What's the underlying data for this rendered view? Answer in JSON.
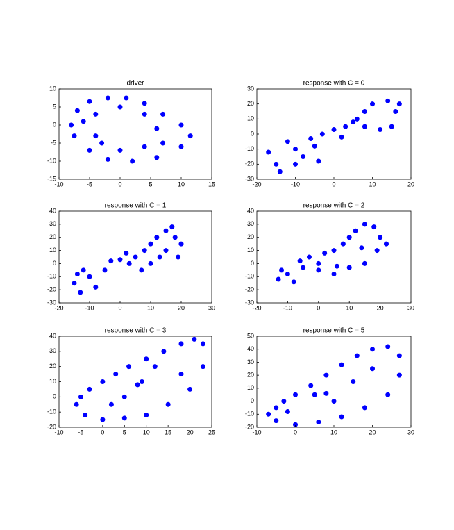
{
  "chart_data": [
    {
      "type": "scatter",
      "title": "driver",
      "color": "#0000ff",
      "xlim": [
        -10,
        15
      ],
      "ylim": [
        -15,
        10
      ],
      "xticks": [
        -10,
        -5,
        0,
        5,
        10,
        15
      ],
      "yticks": [
        -15,
        -10,
        -5,
        0,
        5,
        10
      ],
      "x": [
        -8,
        -7,
        -5,
        -2,
        1,
        4,
        7,
        10,
        11.5,
        10,
        6,
        2,
        -2,
        -5,
        -7.5,
        -4,
        -4,
        0,
        4,
        6,
        4,
        0,
        -3,
        7,
        -6
      ],
      "values": [
        0,
        4,
        6.5,
        7.5,
        7.5,
        6,
        3,
        0,
        -3,
        -6,
        -9,
        -10,
        -9.5,
        -7,
        -3,
        -3,
        3,
        5,
        3,
        -1,
        -6,
        -7,
        -5,
        -5,
        1
      ]
    },
    {
      "type": "scatter",
      "title": "response with C = 0",
      "color": "#0000ff",
      "xlim": [
        -20,
        20
      ],
      "ylim": [
        -30,
        30
      ],
      "xticks": [
        -20,
        -10,
        0,
        10,
        20
      ],
      "yticks": [
        -30,
        -20,
        -10,
        0,
        10,
        20,
        30
      ],
      "x": [
        -15,
        -17,
        -14,
        -10,
        -8,
        -12,
        -5,
        -3,
        0,
        3,
        5,
        8,
        10,
        14,
        16,
        15,
        12,
        8,
        -6,
        -10,
        -4,
        2,
        6,
        17
      ],
      "values": [
        -20,
        -12,
        -25,
        -10,
        -15,
        -5,
        -8,
        0,
        3,
        5,
        8,
        15,
        20,
        22,
        15,
        5,
        3,
        5,
        -3,
        -20,
        -18,
        -2,
        10,
        20
      ]
    },
    {
      "type": "scatter",
      "title": "response with C = 1",
      "color": "#0000ff",
      "xlim": [
        -20,
        30
      ],
      "ylim": [
        -30,
        40
      ],
      "xticks": [
        -20,
        -10,
        0,
        10,
        20,
        30
      ],
      "yticks": [
        -30,
        -20,
        -10,
        0,
        10,
        20,
        30,
        40
      ],
      "x": [
        -15,
        -13,
        -10,
        -12,
        -8,
        -5,
        -3,
        0,
        3,
        5,
        8,
        10,
        12,
        15,
        18,
        20,
        15,
        10,
        7,
        13,
        17,
        -14,
        2,
        19
      ],
      "values": [
        -15,
        -22,
        -10,
        -5,
        -18,
        -5,
        2,
        3,
        0,
        5,
        10,
        15,
        20,
        25,
        20,
        15,
        10,
        0,
        -5,
        5,
        28,
        -8,
        8,
        5
      ]
    },
    {
      "type": "scatter",
      "title": "response with C = 2",
      "color": "#0000ff",
      "xlim": [
        -20,
        30
      ],
      "ylim": [
        -30,
        40
      ],
      "xticks": [
        -20,
        -10,
        0,
        10,
        20,
        30
      ],
      "yticks": [
        -30,
        -20,
        -10,
        0,
        10,
        20,
        30,
        40
      ],
      "x": [
        -13,
        -10,
        -12,
        -8,
        -5,
        -3,
        0,
        2,
        5,
        8,
        10,
        12,
        15,
        18,
        20,
        19,
        15,
        10,
        5,
        0,
        14,
        6,
        -6,
        22
      ],
      "values": [
        -12,
        -8,
        -5,
        -14,
        -3,
        5,
        0,
        8,
        10,
        15,
        20,
        25,
        30,
        28,
        20,
        10,
        0,
        -3,
        -8,
        -5,
        12,
        -2,
        2,
        15
      ]
    },
    {
      "type": "scatter",
      "title": "response with C = 3",
      "color": "#0000ff",
      "xlim": [
        -10,
        25
      ],
      "ylim": [
        -20,
        40
      ],
      "xticks": [
        -10,
        -5,
        0,
        5,
        10,
        15,
        20,
        25
      ],
      "yticks": [
        -20,
        -10,
        0,
        10,
        20,
        30,
        40
      ],
      "x": [
        -6,
        -5,
        -3,
        0,
        3,
        6,
        10,
        14,
        18,
        21,
        23,
        23,
        20,
        15,
        10,
        5,
        0,
        -4,
        9,
        8,
        12,
        2,
        18,
        5
      ],
      "values": [
        -5,
        0,
        5,
        10,
        15,
        20,
        25,
        30,
        35,
        38,
        35,
        20,
        5,
        -5,
        -12,
        -14,
        -15,
        -12,
        10,
        8,
        20,
        -5,
        15,
        0
      ]
    },
    {
      "type": "scatter",
      "title": "response with C = 5",
      "color": "#0000ff",
      "xlim": [
        -10,
        30
      ],
      "ylim": [
        -20,
        50
      ],
      "xticks": [
        -10,
        0,
        10,
        20,
        30
      ],
      "yticks": [
        -20,
        -10,
        0,
        10,
        20,
        30,
        40,
        50
      ],
      "x": [
        -7,
        -5,
        -3,
        0,
        4,
        8,
        12,
        16,
        20,
        24,
        27,
        27,
        24,
        18,
        12,
        6,
        0,
        -5,
        5,
        8,
        15,
        20,
        10,
        -2
      ],
      "values": [
        -10,
        -5,
        0,
        5,
        12,
        20,
        28,
        35,
        40,
        42,
        35,
        20,
        5,
        -5,
        -12,
        -16,
        -18,
        -15,
        5,
        6,
        15,
        25,
        0,
        -8
      ]
    }
  ]
}
